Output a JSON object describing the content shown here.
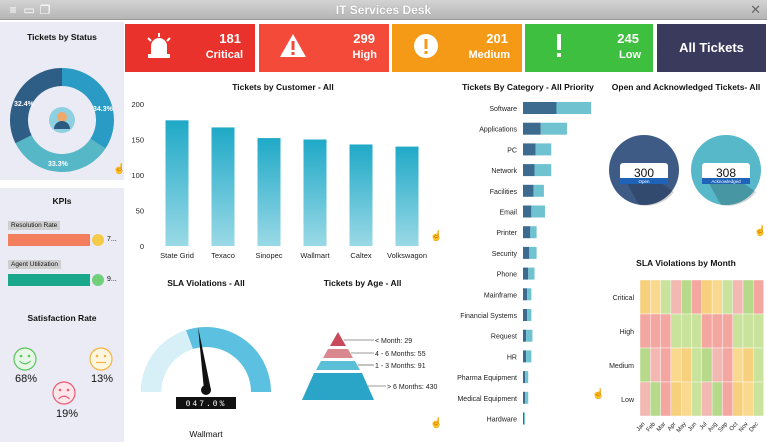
{
  "window": {
    "title": "IT Services Desk",
    "close_glyph": "✕",
    "left_icons": [
      "menu-icon",
      "folder-open-icon",
      "window-icon"
    ]
  },
  "kpis": [
    {
      "value": "181",
      "label": "Critical",
      "color": "#e8322b",
      "icon": "alarm-light-icon"
    },
    {
      "value": "299",
      "label": "High",
      "color": "#f34a3a",
      "icon": "warning-triangle-icon"
    },
    {
      "value": "201",
      "label": "Medium",
      "color": "#f59a17",
      "icon": "exclamation-circle-icon"
    },
    {
      "value": "245",
      "label": "Low",
      "color": "#3fbf3f",
      "icon": "exclamation-icon"
    }
  ],
  "all_tickets_label": "All Tickets",
  "tickets_by_status": {
    "title": "Tickets by Status",
    "labels": [
      "32.4%",
      "34.3%",
      "33.3%"
    ]
  },
  "kpi_panel": {
    "title": "KPIs",
    "rows": [
      {
        "label": "Resolution Rate",
        "value": "7...",
        "bar_color": "#f47f5f",
        "dot_color": "#f7c948"
      },
      {
        "label": "Agent Utilization",
        "value": "9...",
        "bar_color": "#1aa88c",
        "dot_color": "#6fd07a"
      }
    ]
  },
  "satisfaction": {
    "title": "Satisfaction Rate",
    "items": [
      {
        "pct": "68%",
        "icon": "smile-face-icon"
      },
      {
        "pct": "13%",
        "icon": "neutral-face-icon"
      },
      {
        "pct": "19%",
        "icon": "sad-face-icon"
      }
    ]
  },
  "sla_gauge": {
    "title": "SLA Violations - All",
    "readout": "047.0%",
    "caption": "Wallmart"
  },
  "tickets_by_age": {
    "title": "Tickets by Age - All",
    "levels": [
      {
        "label": "< Month: 29",
        "color": "#c94a5c"
      },
      {
        "label": "4 - 6 Months: 55",
        "color": "#d9888f"
      },
      {
        "label": "1 - 3 Months: 91",
        "color": "#5cbfd8"
      },
      {
        "label": "> 6 Months: 430",
        "color": "#2aa5c8"
      }
    ]
  },
  "chart_data": [
    {
      "type": "bar",
      "title": "Tickets by Customer - All",
      "categories": [
        "State Grid",
        "Texaco",
        "Sinopec",
        "Wallmart",
        "Caltex",
        "Volkswagon"
      ],
      "values": [
        177,
        167,
        152,
        150,
        143,
        140
      ],
      "ylim": [
        0,
        200
      ],
      "yticks": [
        0,
        50,
        100,
        150,
        200
      ],
      "color": "#2bb5cf"
    },
    {
      "type": "bar",
      "orientation": "horizontal",
      "title": "Tickets By Category - All Priority",
      "categories": [
        "Software",
        "Applications",
        "PC",
        "Network",
        "Facilities",
        "Email",
        "Printer",
        "Security",
        "Phone",
        "Mainframe",
        "Financial Systems",
        "Request",
        "HR",
        "Pharma Equipment",
        "Medical Equipment",
        "Hardware"
      ],
      "series": [
        {
          "values": [
            32,
            17,
            12,
            11,
            10,
            8,
            7,
            6,
            5,
            4,
            4,
            3,
            3,
            2,
            2,
            1
          ],
          "color": "#3d6a8f"
        },
        {
          "values": [
            33,
            25,
            15,
            16,
            10,
            13,
            6,
            7,
            6,
            4,
            4,
            6,
            5,
            3,
            3,
            1
          ],
          "color": "#6fc3d0"
        }
      ]
    },
    {
      "type": "pie",
      "title": "Open and Acknowledged Tickets- All",
      "items": [
        {
          "label": "Open",
          "value": 300,
          "color": "#3e5b85"
        },
        {
          "label": "Acknowledged",
          "value": 308,
          "color": "#56b8c8"
        }
      ]
    },
    {
      "type": "heatmap",
      "title": "SLA Violations by Month",
      "rows": [
        "Critical",
        "High",
        "Medium",
        "Low"
      ],
      "columns": [
        "Jan",
        "Feb",
        "Mar",
        "Apr",
        "May",
        "Jun",
        "Jul",
        "Aug",
        "Sep",
        "Oct",
        "Nov",
        "Dec"
      ]
    }
  ]
}
